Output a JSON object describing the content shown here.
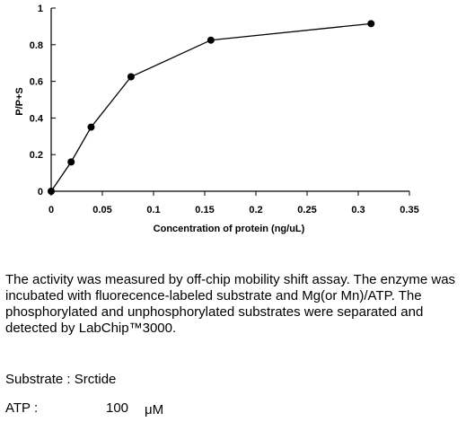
{
  "chart_data": {
    "type": "line",
    "title": "",
    "xlabel": "Concentration of protein (ng/uL)",
    "ylabel": "P/P+S",
    "xlim": [
      0,
      0.35
    ],
    "ylim": [
      0,
      1
    ],
    "x_ticks": [
      0,
      0.05,
      0.1,
      0.15,
      0.2,
      0.25,
      0.3,
      0.35
    ],
    "x_tick_labels": [
      "0",
      "0.05",
      "0.1",
      "0.15",
      "0.2",
      "0.25",
      "0.3",
      "0.35"
    ],
    "y_ticks": [
      0,
      0.2,
      0.4,
      0.6,
      0.8,
      1
    ],
    "y_tick_labels": [
      "0",
      "0.2",
      "0.4",
      "0.6",
      "0.8",
      "1"
    ],
    "grid": false,
    "legend": "none",
    "series": [
      {
        "x": [
          0,
          0.0195,
          0.039,
          0.078,
          0.156,
          0.3125
        ],
        "y": [
          0,
          0.16,
          0.35,
          0.625,
          0.825,
          0.915
        ]
      }
    ],
    "colors": {
      "line": "#000000",
      "marker": "#000000"
    }
  },
  "description": "The activity was measured by off-chip mobility shift assay. The enzyme was incubated with fluorecence-labeled  substrate and Mg(or Mn)/ATP. The phosphorylated and unphosphorylated substrates were separated and detected by LabChip™3000.",
  "substrate": {
    "label": "Substrate : Srctide"
  },
  "atp": {
    "label": "ATP :",
    "value": "100",
    "unit": "μM"
  }
}
